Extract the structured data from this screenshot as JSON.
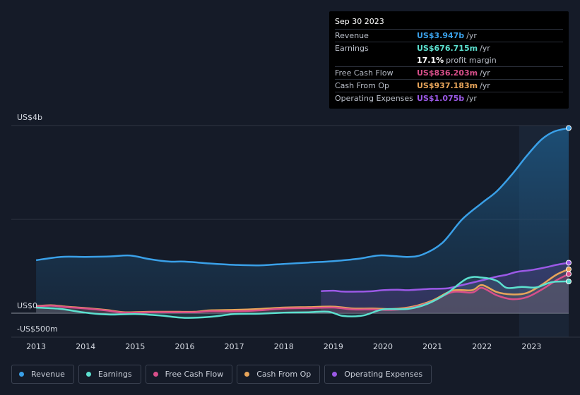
{
  "chart_data": {
    "type": "area",
    "title": "",
    "xlabel": "",
    "ylabel": "",
    "ylim": [
      -500,
      4000
    ],
    "y_tick_labels": [
      "US$4b",
      "US$0",
      "-US$500m"
    ],
    "y_tick_values": [
      4000,
      0,
      -500
    ],
    "x_tick_labels": [
      "2013",
      "2014",
      "2015",
      "2016",
      "2017",
      "2018",
      "2019",
      "2020",
      "2021",
      "2022",
      "2023"
    ],
    "x_tick_values": [
      2013,
      2014,
      2015,
      2016,
      2017,
      2018,
      2019,
      2020,
      2021,
      2022,
      2023
    ],
    "xlim": [
      2012.5,
      2023.75
    ],
    "forecast_start": 2022.75,
    "series": [
      {
        "name": "Revenue",
        "color": "#3aa0e8",
        "x": [
          2013.0,
          2013.5,
          2014.0,
          2014.5,
          2014.9,
          2015.3,
          2015.7,
          2016.0,
          2016.5,
          2017.0,
          2017.5,
          2018.0,
          2018.5,
          2019.0,
          2019.5,
          2019.9,
          2020.2,
          2020.5,
          2020.8,
          2021.2,
          2021.6,
          2022.0,
          2022.3,
          2022.6,
          2022.9,
          2023.2,
          2023.45,
          2023.75
        ],
        "values": [
          1130,
          1200,
          1200,
          1210,
          1230,
          1150,
          1100,
          1100,
          1060,
          1030,
          1020,
          1050,
          1080,
          1110,
          1160,
          1230,
          1220,
          1200,
          1250,
          1500,
          2000,
          2350,
          2600,
          2950,
          3350,
          3700,
          3870,
          3947
        ]
      },
      {
        "name": "Earnings",
        "color": "#5ce0cf",
        "x": [
          2013.0,
          2013.5,
          2014.0,
          2014.5,
          2015.0,
          2015.5,
          2016.0,
          2016.5,
          2017.0,
          2017.5,
          2018.0,
          2018.5,
          2018.9,
          2019.2,
          2019.6,
          2020.0,
          2020.5,
          2020.9,
          2021.3,
          2021.7,
          2022.0,
          2022.3,
          2022.5,
          2022.8,
          2023.1,
          2023.4,
          2023.75
        ],
        "values": [
          120,
          90,
          10,
          -30,
          -20,
          -50,
          -100,
          -80,
          -20,
          -10,
          10,
          20,
          30,
          -60,
          -50,
          80,
          90,
          200,
          430,
          740,
          760,
          690,
          540,
          560,
          550,
          660,
          676.715
        ]
      },
      {
        "name": "Free Cash Flow",
        "color": "#d84f8a",
        "x": [
          2013.0,
          2013.3,
          2013.6,
          2014.0,
          2014.4,
          2014.8,
          2015.3,
          2015.8,
          2016.2,
          2016.5,
          2017.0,
          2017.5,
          2018.0,
          2018.5,
          2019.0,
          2019.4,
          2019.8,
          2020.2,
          2020.6,
          2021.0,
          2021.4,
          2021.8,
          2022.0,
          2022.3,
          2022.6,
          2022.9,
          2023.2,
          2023.5,
          2023.75
        ],
        "values": [
          140,
          160,
          130,
          100,
          60,
          10,
          20,
          20,
          20,
          40,
          40,
          60,
          100,
          110,
          120,
          80,
          80,
          70,
          120,
          250,
          450,
          440,
          540,
          380,
          300,
          340,
          500,
          700,
          836.203
        ]
      },
      {
        "name": "Cash From Op",
        "color": "#e8a55a",
        "x": [
          2013.0,
          2013.3,
          2013.6,
          2014.0,
          2014.4,
          2014.8,
          2015.3,
          2015.8,
          2016.2,
          2016.5,
          2017.0,
          2017.5,
          2018.0,
          2018.5,
          2019.0,
          2019.4,
          2019.8,
          2020.2,
          2020.6,
          2021.0,
          2021.4,
          2021.8,
          2022.0,
          2022.3,
          2022.6,
          2022.9,
          2023.2,
          2023.5,
          2023.75
        ],
        "values": [
          150,
          170,
          140,
          110,
          70,
          20,
          30,
          30,
          30,
          60,
          70,
          90,
          120,
          130,
          140,
          100,
          100,
          90,
          140,
          270,
          480,
          490,
          600,
          450,
          400,
          430,
          600,
          820,
          937.183
        ]
      },
      {
        "name": "Operating Expenses",
        "color": "#9b59e6",
        "x": [
          2018.75,
          2019.0,
          2019.2,
          2019.5,
          2019.8,
          2020.0,
          2020.3,
          2020.5,
          2020.8,
          2021.0,
          2021.3,
          2021.6,
          2022.0,
          2022.3,
          2022.5,
          2022.7,
          2023.0,
          2023.3,
          2023.5,
          2023.75
        ],
        "values": [
          470,
          480,
          460,
          460,
          470,
          490,
          500,
          490,
          510,
          520,
          530,
          600,
          700,
          780,
          820,
          880,
          920,
          980,
          1030,
          1075
        ]
      }
    ]
  },
  "tooltip": {
    "date": "Sep 30 2023",
    "rows": [
      {
        "label": "Revenue",
        "value": "US$3.947b",
        "unit": "/yr",
        "color": "#3aa0e8"
      },
      {
        "label": "Earnings",
        "value": "US$676.715m",
        "unit": "/yr",
        "color": "#5ce0cf"
      },
      {
        "label": "",
        "value": "17.1%",
        "unit": "profit margin",
        "color": "#ffffff"
      },
      {
        "label": "Free Cash Flow",
        "value": "US$836.203m",
        "unit": "/yr",
        "color": "#d84f8a"
      },
      {
        "label": "Cash From Op",
        "value": "US$937.183m",
        "unit": "/yr",
        "color": "#e8a55a"
      },
      {
        "label": "Operating Expenses",
        "value": "US$1.075b",
        "unit": "/yr",
        "color": "#9b59e6"
      }
    ]
  },
  "legend": [
    {
      "label": "Revenue",
      "color": "#3aa0e8"
    },
    {
      "label": "Earnings",
      "color": "#5ce0cf"
    },
    {
      "label": "Free Cash Flow",
      "color": "#d84f8a"
    },
    {
      "label": "Cash From Op",
      "color": "#e8a55a"
    },
    {
      "label": "Operating Expenses",
      "color": "#9b59e6"
    }
  ]
}
